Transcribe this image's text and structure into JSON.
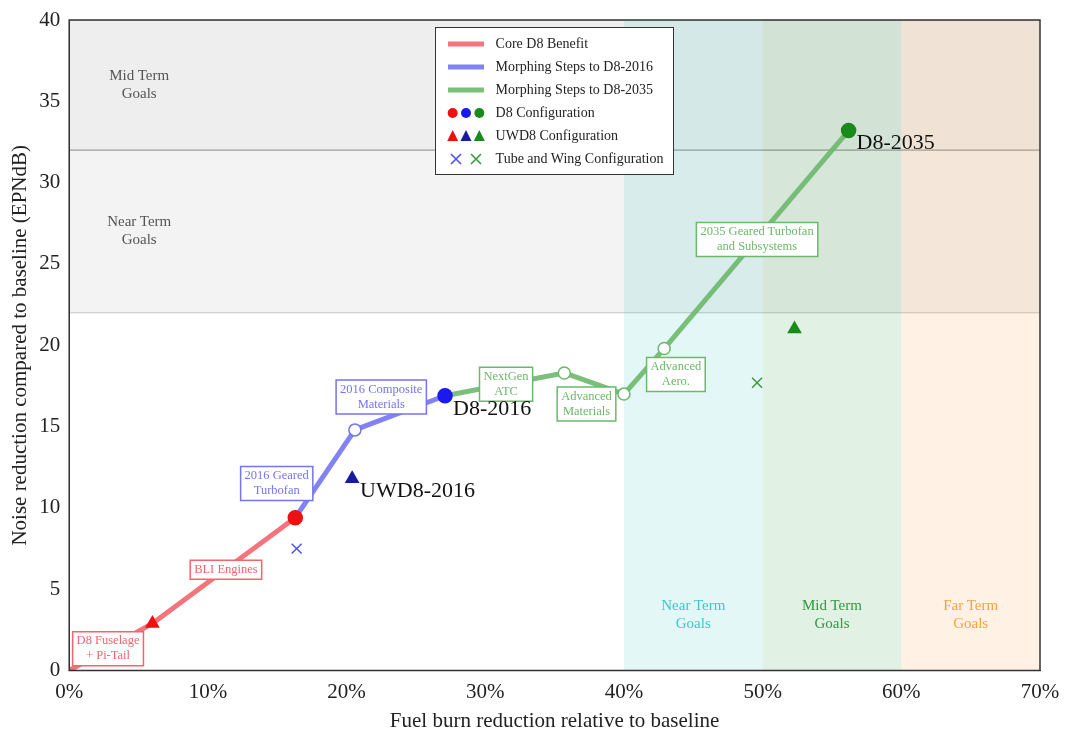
{
  "chart_data": {
    "type": "line",
    "xlabel": "Fuel burn reduction relative to baseline",
    "ylabel": "Noise reduction compared to baseline (EPNdB)",
    "xlim": [
      0,
      70
    ],
    "xticks": [
      {
        "value": 0,
        "label": "0%"
      },
      {
        "value": 10,
        "label": "10%"
      },
      {
        "value": 20,
        "label": "20%"
      },
      {
        "value": 30,
        "label": "30%"
      },
      {
        "value": 40,
        "label": "40%"
      },
      {
        "value": 50,
        "label": "50%"
      },
      {
        "value": 60,
        "label": "60%"
      },
      {
        "value": 70,
        "label": "70%"
      }
    ],
    "ylim": [
      0,
      40
    ],
    "yticks": [
      0,
      5,
      10,
      15,
      20,
      25,
      30,
      35,
      40
    ],
    "grid": false,
    "legend": "top",
    "series": [
      {
        "name": "Core D8 Benefit",
        "color": "#f4646c",
        "marker": "none",
        "x": [
          0,
          6.0,
          16.3
        ],
        "values": [
          0,
          2.9,
          9.4
        ]
      },
      {
        "name": "Morphing Steps to D8-2016",
        "color": "#7474f4",
        "marker": "circle",
        "x": [
          16.3,
          20.6,
          27.1
        ],
        "values": [
          9.4,
          14.8,
          16.9
        ]
      },
      {
        "name": "Morphing Steps to D8-2035",
        "color": "#6cb86c",
        "marker": "circle",
        "x": [
          27.1,
          35.7,
          40.0,
          42.9,
          56.2
        ],
        "values": [
          16.9,
          18.3,
          17.0,
          19.8,
          33.2
        ]
      },
      {
        "name": "D8 Configuration",
        "type": "scatter",
        "marker": "circle",
        "colors": [
          "#ee1111",
          "#1a1aee",
          "#1a8a1a"
        ],
        "x": [
          16.3,
          27.1,
          56.2
        ],
        "values": [
          9.4,
          16.9,
          33.2
        ]
      },
      {
        "name": "UWD8 Configuration",
        "type": "scatter",
        "marker": "triangle",
        "colors": [
          "#ee1111",
          "#1a1aa0",
          "#1a8a1a"
        ],
        "x": [
          6.0,
          20.4,
          52.3
        ],
        "values": [
          2.9,
          11.8,
          21.0
        ]
      },
      {
        "name": "Tube and Wing Configuration",
        "type": "scatter",
        "marker": "cross",
        "colors": [
          "#5050ee",
          "#3a9a3a"
        ],
        "x": [
          16.4,
          49.6
        ],
        "values": [
          7.5,
          17.7
        ]
      }
    ],
    "bands": [
      {
        "axis": "y",
        "from": 32,
        "to": 40,
        "label": "Mid Term\nGoals",
        "color": "#555555"
      },
      {
        "axis": "y",
        "from": 22,
        "to": 32,
        "label": "Near Term\nGoals",
        "color": "#555555"
      },
      {
        "axis": "x",
        "from": 40,
        "to": 50,
        "label": "Near Term\nGoals",
        "color": "#3cc8c8"
      },
      {
        "axis": "x",
        "from": 50,
        "to": 60,
        "label": "Mid Term\nGoals",
        "color": "#2e9a3e"
      },
      {
        "axis": "x",
        "from": 60,
        "to": 70,
        "label": "Far Term\nGoals",
        "color": "#ffa040"
      }
    ],
    "annotations": [
      {
        "text": "D8 Fuselage\n+ Pi-Tail",
        "x": 2.8,
        "y": 1.35
      },
      {
        "text": "BLI Engines",
        "x": 11.3,
        "y": 6.2
      },
      {
        "text": "2016 Geared\nTurbofan",
        "x": 18.0,
        "y": 11.5
      },
      {
        "text": "2016 Composite\nMaterials",
        "x": 22.5,
        "y": 15.4
      },
      {
        "text": "NextGen\nATC",
        "x": 31.5,
        "y": 17.6
      },
      {
        "text": "Advanced\nMaterials",
        "x": 37.3,
        "y": 17.8
      },
      {
        "text": "Advanced\nAero.",
        "x": 41.2,
        "y": 18.2
      },
      {
        "text": "2035 Geared Turbofan\nand Subsystems",
        "x": 49.6,
        "y": 26.5
      },
      {
        "text": "D8-2016",
        "x": 27.1,
        "y": 16.9
      },
      {
        "text": "UWD8-2016",
        "x": 20.4,
        "y": 11.8
      },
      {
        "text": "D8-2035",
        "x": 56.2,
        "y": 33.2
      }
    ]
  }
}
